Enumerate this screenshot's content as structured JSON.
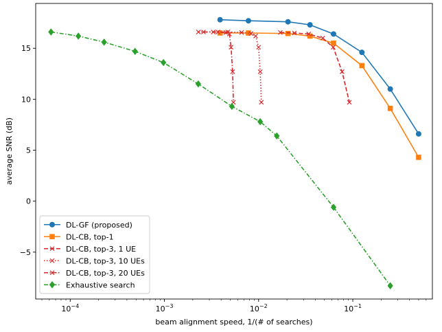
{
  "chart_data": {
    "type": "line",
    "xlabel": "beam alignment speed, 1/(# of searches)",
    "ylabel": "average SNR (dB)",
    "x_scale": "log",
    "xlim": [
      4.3e-05,
      0.7
    ],
    "ylim": [
      -9.6,
      19.4
    ],
    "x_ticks": [
      {
        "value": 0.0001,
        "base": "10",
        "exp": "−4"
      },
      {
        "value": 0.001,
        "base": "10",
        "exp": "−3"
      },
      {
        "value": 0.01,
        "base": "10",
        "exp": "−2"
      },
      {
        "value": 0.1,
        "base": "10",
        "exp": "−1"
      }
    ],
    "y_ticks": [
      {
        "value": -5,
        "label": "−5"
      },
      {
        "value": 0,
        "label": "0"
      },
      {
        "value": 5,
        "label": "5"
      },
      {
        "value": 10,
        "label": "10"
      },
      {
        "value": 15,
        "label": "15"
      }
    ],
    "grid": false,
    "legend_position": "lower-left",
    "series": [
      {
        "name": "DL-GF (proposed)",
        "color": "#1f77b4",
        "dash": "solid",
        "marker": "circle",
        "points": [
          [
            0.0039,
            17.8
          ],
          [
            0.0078,
            17.7
          ],
          [
            0.0205,
            17.6
          ],
          [
            0.0351,
            17.3
          ],
          [
            0.0625,
            16.4
          ],
          [
            0.125,
            14.6
          ],
          [
            0.25,
            11.0
          ],
          [
            0.5,
            6.6
          ]
        ]
      },
      {
        "name": "DL-CB, top-1",
        "color": "#ff7f0e",
        "dash": "solid",
        "marker": "square",
        "points": [
          [
            0.0039,
            16.5
          ],
          [
            0.0078,
            16.5
          ],
          [
            0.0205,
            16.45
          ],
          [
            0.0351,
            16.2
          ],
          [
            0.0625,
            15.5
          ],
          [
            0.125,
            13.3
          ],
          [
            0.25,
            9.1
          ],
          [
            0.5,
            4.3
          ]
        ]
      },
      {
        "name": "DL-CB, top-3, 1 UE",
        "color": "#d62728",
        "dash": "dashed",
        "marker": "x",
        "points": [
          [
            0.017,
            16.55
          ],
          [
            0.024,
            16.5
          ],
          [
            0.034,
            16.4
          ],
          [
            0.048,
            16.0
          ],
          [
            0.062,
            15.1
          ],
          [
            0.077,
            12.7
          ],
          [
            0.092,
            9.7
          ]
        ]
      },
      {
        "name": "DL-CB, top-3, 10 UEs",
        "color": "#d62728",
        "dash": "dotted",
        "marker": "x",
        "points": [
          [
            0.0023,
            16.6
          ],
          [
            0.0033,
            16.6
          ],
          [
            0.0047,
            16.6
          ],
          [
            0.0066,
            16.55
          ],
          [
            0.0083,
            16.45
          ],
          [
            0.0093,
            16.2
          ],
          [
            0.01,
            15.1
          ],
          [
            0.0104,
            12.7
          ],
          [
            0.0107,
            9.7
          ]
        ]
      },
      {
        "name": "DL-CB, top-3, 20 UEs",
        "color": "#d62728",
        "dash": "dashdot",
        "marker": "x",
        "points": [
          [
            0.0026,
            16.6
          ],
          [
            0.0037,
            16.6
          ],
          [
            0.0045,
            16.55
          ],
          [
            0.0049,
            16.4
          ],
          [
            0.0051,
            15.1
          ],
          [
            0.0053,
            12.7
          ],
          [
            0.0054,
            9.7
          ]
        ]
      },
      {
        "name": "Exhaustive search",
        "color": "#2ca02c",
        "dash": "dashdot",
        "marker": "diamond",
        "points": [
          [
            6.25e-05,
            16.6
          ],
          [
            0.000122,
            16.2
          ],
          [
            0.000229,
            15.6
          ],
          [
            0.000488,
            14.7
          ],
          [
            0.000977,
            13.6
          ],
          [
            0.00229,
            11.5
          ],
          [
            0.0052,
            9.3
          ],
          [
            0.0104,
            7.8
          ],
          [
            0.0156,
            6.4
          ],
          [
            0.0625,
            -0.6
          ],
          [
            0.25,
            -8.3
          ]
        ]
      }
    ]
  }
}
